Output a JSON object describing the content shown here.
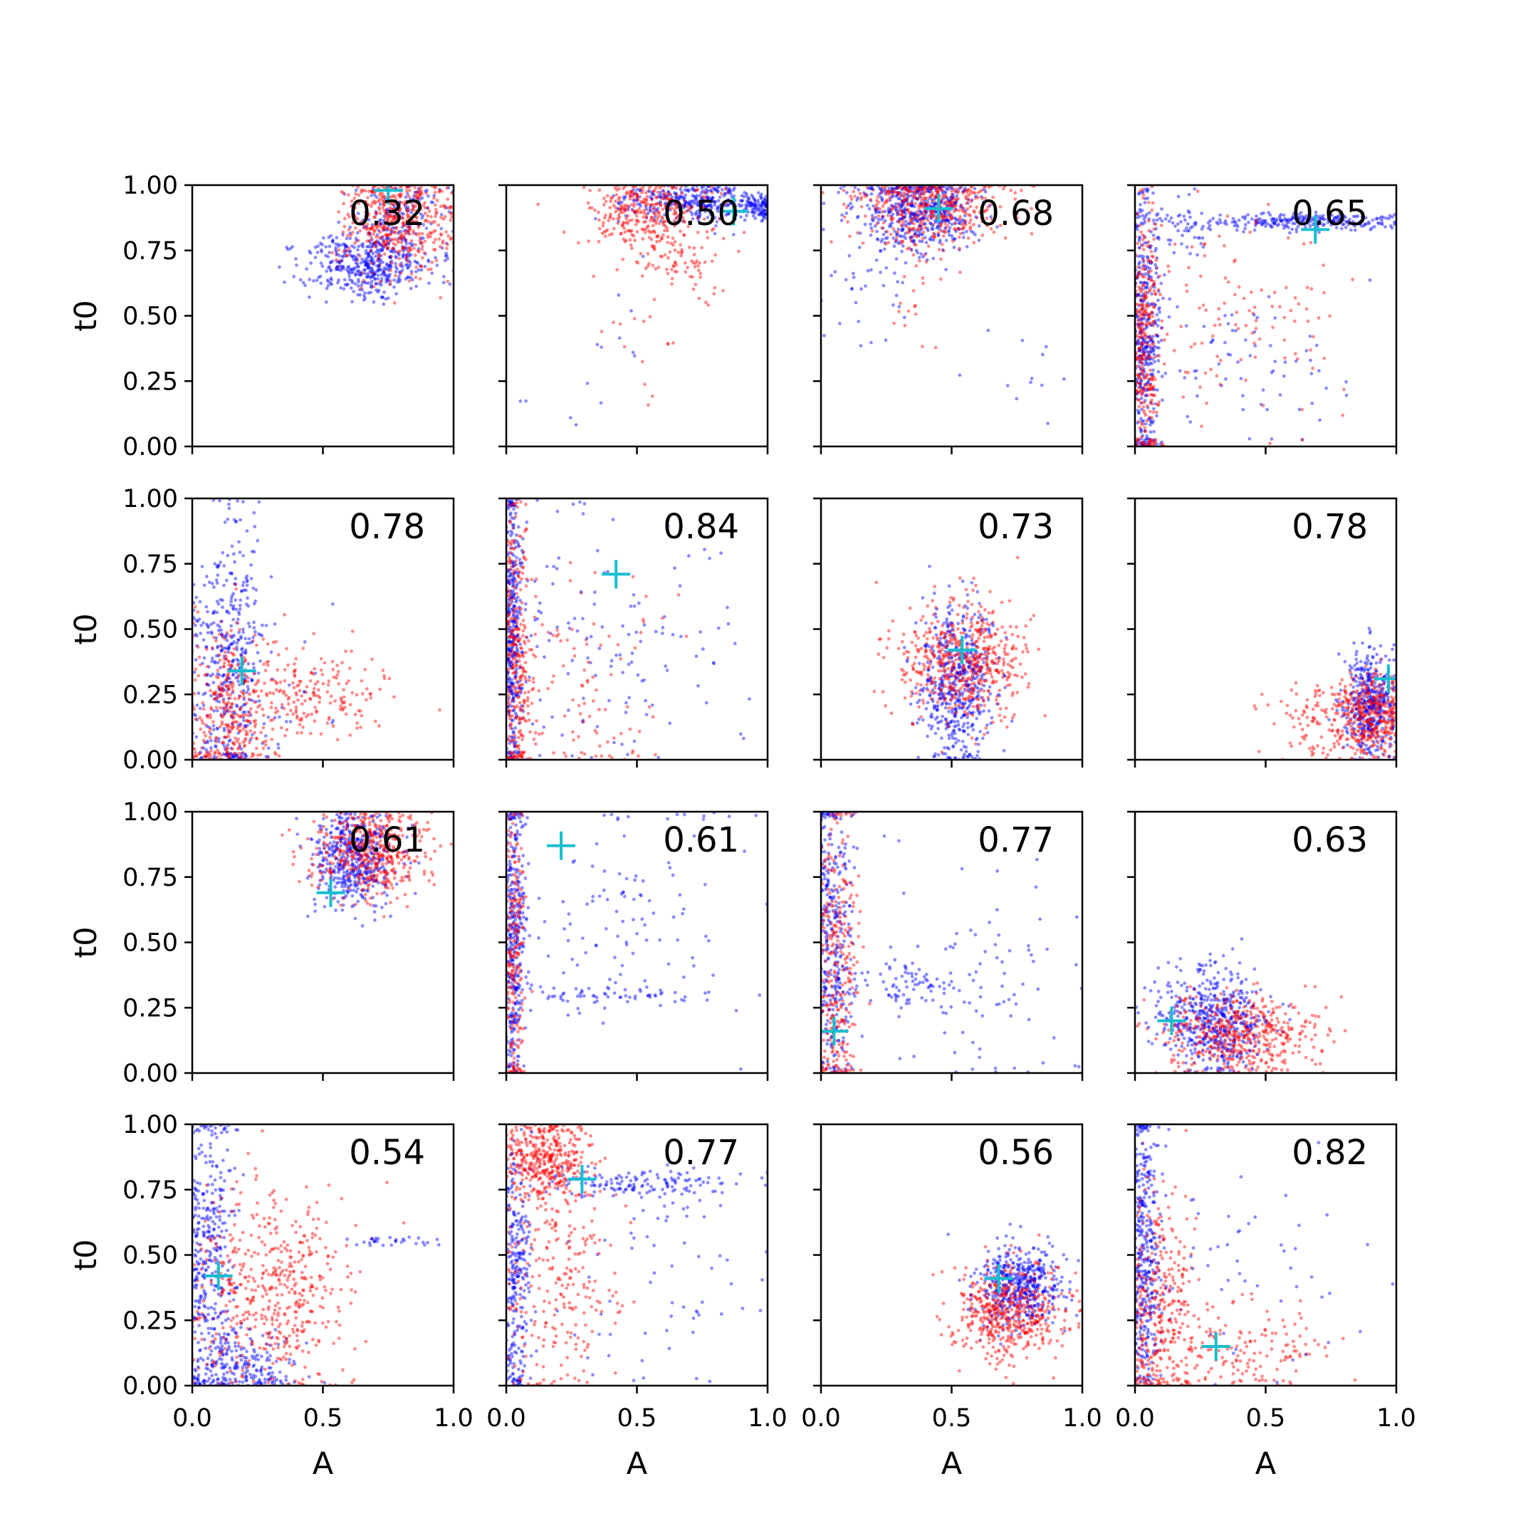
{
  "chart_data": {
    "type": "scatter",
    "layout": {
      "rows": 4,
      "cols": 4,
      "sharex": true,
      "sharey": true
    },
    "xlabel": "A",
    "ylabel": "t0",
    "xlim": [
      0,
      1
    ],
    "ylim": [
      0,
      1
    ],
    "x_ticks": [
      "0.0",
      "0.5",
      "1.0"
    ],
    "y_ticks": [
      "0.00",
      "0.25",
      "0.50",
      "0.75",
      "1.00"
    ],
    "grid": false,
    "colors": {
      "series_a": "#0000ff",
      "series_b": "#ff0000",
      "marker": "#17becf",
      "axes": "#000000"
    },
    "panels": [
      {
        "score": "0.32",
        "marker": [
          0.75,
          0.98
        ],
        "blue": [
          [
            0.68,
            0.7,
            0.12,
            0.06,
            460
          ],
          [
            0.8,
            0.9,
            0.1,
            0.06,
            120
          ]
        ],
        "red": [
          [
            0.78,
            0.86,
            0.1,
            0.1,
            480
          ]
        ]
      },
      {
        "score": "0.50",
        "marker": [
          0.87,
          0.9
        ],
        "blue": [
          [
            0.72,
            0.94,
            0.14,
            0.04,
            320
          ],
          [
            0.97,
            0.91,
            0.04,
            0.02,
            80
          ],
          [
            0.3,
            0.3,
            0.15,
            0.2,
            14
          ]
        ],
        "red": [
          [
            0.55,
            0.9,
            0.12,
            0.07,
            330
          ],
          [
            0.65,
            0.72,
            0.1,
            0.07,
            80
          ],
          [
            0.5,
            0.4,
            0.1,
            0.12,
            16
          ]
        ]
      },
      {
        "score": "0.68",
        "marker": [
          0.45,
          0.91
        ],
        "blue": [
          [
            0.38,
            0.9,
            0.12,
            0.08,
            520
          ],
          [
            0.2,
            0.6,
            0.08,
            0.12,
            35
          ],
          [
            0.78,
            0.2,
            0.1,
            0.12,
            12
          ]
        ],
        "red": [
          [
            0.42,
            0.92,
            0.14,
            0.07,
            450
          ],
          [
            0.35,
            0.6,
            0.08,
            0.1,
            25
          ]
        ]
      },
      {
        "score": "0.65",
        "marker": [
          0.69,
          0.83
        ],
        "blue": [
          [
            0.04,
            0.45,
            0.03,
            0.28,
            360
          ],
          [
            0.65,
            0.86,
            0.22,
            0.015,
            240
          ],
          [
            0.15,
            0.85,
            0.08,
            0.06,
            60
          ],
          [
            0.4,
            0.3,
            0.2,
            0.15,
            70
          ]
        ],
        "red": [
          [
            0.04,
            0.4,
            0.03,
            0.28,
            330
          ],
          [
            0.4,
            0.5,
            0.2,
            0.18,
            110
          ]
        ]
      },
      {
        "score": "0.78",
        "marker": [
          0.19,
          0.34
        ],
        "blue": [
          [
            0.14,
            0.4,
            0.07,
            0.28,
            420
          ],
          [
            0.3,
            0.3,
            0.12,
            0.12,
            25
          ]
        ],
        "red": [
          [
            0.15,
            0.18,
            0.08,
            0.16,
            340
          ],
          [
            0.45,
            0.25,
            0.15,
            0.09,
            190
          ]
        ]
      },
      {
        "score": "0.84",
        "marker": [
          0.42,
          0.71
        ],
        "blue": [
          [
            0.02,
            0.5,
            0.02,
            0.3,
            340
          ],
          [
            0.4,
            0.4,
            0.25,
            0.25,
            140
          ]
        ],
        "red": [
          [
            0.04,
            0.4,
            0.03,
            0.28,
            300
          ],
          [
            0.3,
            0.3,
            0.18,
            0.2,
            110
          ]
        ]
      },
      {
        "score": "0.73",
        "marker": [
          0.54,
          0.42
        ],
        "blue": [
          [
            0.52,
            0.3,
            0.07,
            0.16,
            520
          ]
        ],
        "red": [
          [
            0.55,
            0.38,
            0.12,
            0.11,
            560
          ]
        ]
      },
      {
        "score": "0.78",
        "marker": [
          0.97,
          0.31
        ],
        "blue": [
          [
            0.9,
            0.22,
            0.05,
            0.1,
            400
          ]
        ],
        "red": [
          [
            0.9,
            0.18,
            0.06,
            0.08,
            380
          ],
          [
            0.7,
            0.15,
            0.1,
            0.08,
            120
          ]
        ]
      },
      {
        "score": "0.61",
        "marker": [
          0.53,
          0.69
        ],
        "blue": [
          [
            0.62,
            0.82,
            0.08,
            0.09,
            460
          ]
        ],
        "red": [
          [
            0.68,
            0.85,
            0.11,
            0.09,
            480
          ]
        ]
      },
      {
        "score": "0.61",
        "marker": [
          0.21,
          0.87
        ],
        "blue": [
          [
            0.03,
            0.5,
            0.02,
            0.3,
            320
          ],
          [
            0.4,
            0.3,
            0.2,
            0.015,
            60
          ],
          [
            0.5,
            0.6,
            0.25,
            0.25,
            110
          ]
        ],
        "red": [
          [
            0.03,
            0.45,
            0.02,
            0.3,
            220
          ]
        ]
      },
      {
        "score": "0.77",
        "marker": [
          0.05,
          0.16
        ],
        "blue": [
          [
            0.05,
            0.5,
            0.04,
            0.3,
            300
          ],
          [
            0.3,
            0.33,
            0.15,
            0.05,
            90
          ],
          [
            0.6,
            0.4,
            0.22,
            0.25,
            80
          ]
        ],
        "red": [
          [
            0.06,
            0.4,
            0.04,
            0.3,
            290
          ]
        ]
      },
      {
        "score": "0.63",
        "marker": [
          0.14,
          0.2
        ],
        "blue": [
          [
            0.3,
            0.2,
            0.1,
            0.1,
            520
          ]
        ],
        "red": [
          [
            0.4,
            0.15,
            0.14,
            0.08,
            500
          ]
        ]
      },
      {
        "score": "0.54",
        "marker": [
          0.1,
          0.42
        ],
        "blue": [
          [
            0.06,
            0.5,
            0.05,
            0.3,
            370
          ],
          [
            0.2,
            0.08,
            0.1,
            0.07,
            190
          ],
          [
            0.8,
            0.55,
            0.1,
            0.01,
            30
          ]
        ],
        "red": [
          [
            0.3,
            0.35,
            0.15,
            0.2,
            500
          ]
        ]
      },
      {
        "score": "0.77",
        "marker": [
          0.29,
          0.79
        ],
        "blue": [
          [
            0.04,
            0.4,
            0.03,
            0.28,
            260
          ],
          [
            0.5,
            0.77,
            0.2,
            0.03,
            150
          ],
          [
            0.6,
            0.4,
            0.25,
            0.25,
            60
          ]
        ],
        "red": [
          [
            0.15,
            0.88,
            0.08,
            0.08,
            380
          ],
          [
            0.2,
            0.4,
            0.12,
            0.25,
            260
          ]
        ]
      },
      {
        "score": "0.56",
        "marker": [
          0.68,
          0.41
        ],
        "blue": [
          [
            0.76,
            0.38,
            0.08,
            0.08,
            460
          ]
        ],
        "red": [
          [
            0.72,
            0.28,
            0.1,
            0.09,
            520
          ]
        ]
      },
      {
        "score": "0.82",
        "marker": [
          0.31,
          0.15
        ],
        "blue": [
          [
            0.04,
            0.5,
            0.03,
            0.28,
            360
          ],
          [
            0.4,
            0.4,
            0.25,
            0.25,
            60
          ]
        ],
        "red": [
          [
            0.1,
            0.3,
            0.07,
            0.22,
            340
          ],
          [
            0.4,
            0.15,
            0.18,
            0.1,
            150
          ]
        ]
      }
    ]
  }
}
